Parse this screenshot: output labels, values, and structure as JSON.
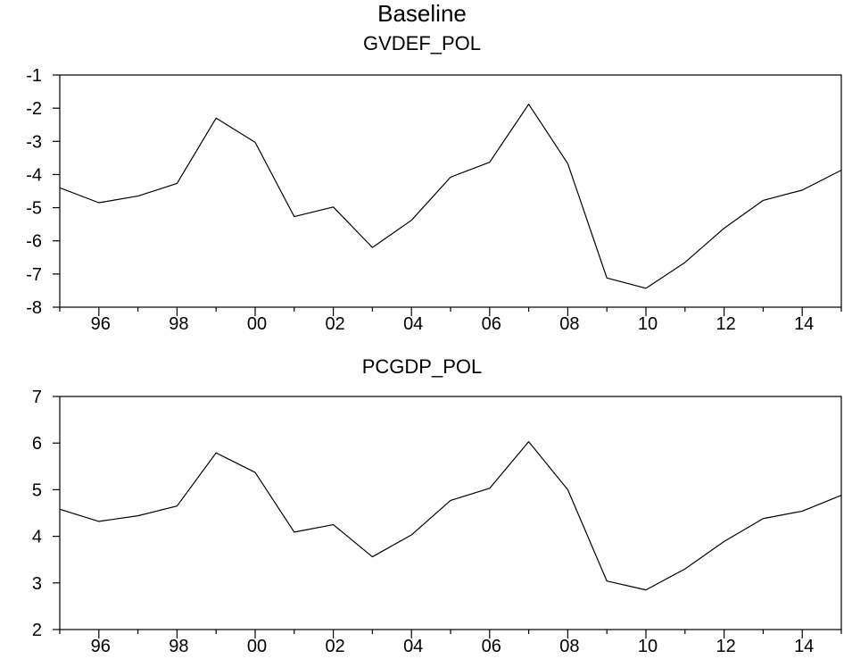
{
  "title": "Baseline",
  "chart_data": [
    {
      "type": "line",
      "title": "GVDEF_POL",
      "xlabel": "",
      "ylabel": "",
      "x": [
        1995,
        1996,
        1997,
        1998,
        1999,
        2000,
        2001,
        2002,
        2003,
        2004,
        2005,
        2006,
        2007,
        2008,
        2009,
        2010,
        2011,
        2012,
        2013,
        2014,
        2015
      ],
      "xticks": [
        1996,
        1998,
        2000,
        2002,
        2004,
        2006,
        2008,
        2010,
        2012,
        2014
      ],
      "xtick_labels": [
        "96",
        "98",
        "00",
        "02",
        "04",
        "06",
        "08",
        "10",
        "12",
        "14"
      ],
      "xlim": [
        1995,
        2015
      ],
      "ylim": [
        -8,
        -1
      ],
      "yticks": [
        -8,
        -7,
        -6,
        -5,
        -4,
        -3,
        -2,
        -1
      ],
      "ytick_labels": [
        "-8",
        "-7",
        "-6",
        "-5",
        "-4",
        "-3",
        "-2",
        "-1"
      ],
      "grid": false,
      "values": [
        -4.4,
        -4.85,
        -4.65,
        -4.27,
        -2.3,
        -3.03,
        -5.27,
        -4.98,
        -6.2,
        -5.38,
        -4.08,
        -3.63,
        -1.88,
        -3.67,
        -7.12,
        -7.43,
        -6.65,
        -5.62,
        -4.78,
        -4.47,
        -3.87
      ]
    },
    {
      "type": "line",
      "title": "PCGDP_POL",
      "xlabel": "",
      "ylabel": "",
      "x": [
        1995,
        1996,
        1997,
        1998,
        1999,
        2000,
        2001,
        2002,
        2003,
        2004,
        2005,
        2006,
        2007,
        2008,
        2009,
        2010,
        2011,
        2012,
        2013,
        2014,
        2015
      ],
      "xticks": [
        1996,
        1998,
        2000,
        2002,
        2004,
        2006,
        2008,
        2010,
        2012,
        2014
      ],
      "xtick_labels": [
        "96",
        "98",
        "00",
        "02",
        "04",
        "06",
        "08",
        "10",
        "12",
        "14"
      ],
      "xlim": [
        1995,
        2015
      ],
      "ylim": [
        2,
        7
      ],
      "yticks": [
        2,
        3,
        4,
        5,
        6,
        7
      ],
      "ytick_labels": [
        "2",
        "3",
        "4",
        "5",
        "6",
        "7"
      ],
      "grid": false,
      "values": [
        4.58,
        4.32,
        4.44,
        4.65,
        5.79,
        5.37,
        4.09,
        4.25,
        3.56,
        4.03,
        4.77,
        5.03,
        6.03,
        5.0,
        3.04,
        2.85,
        3.3,
        3.89,
        4.38,
        4.54,
        4.88
      ]
    }
  ]
}
